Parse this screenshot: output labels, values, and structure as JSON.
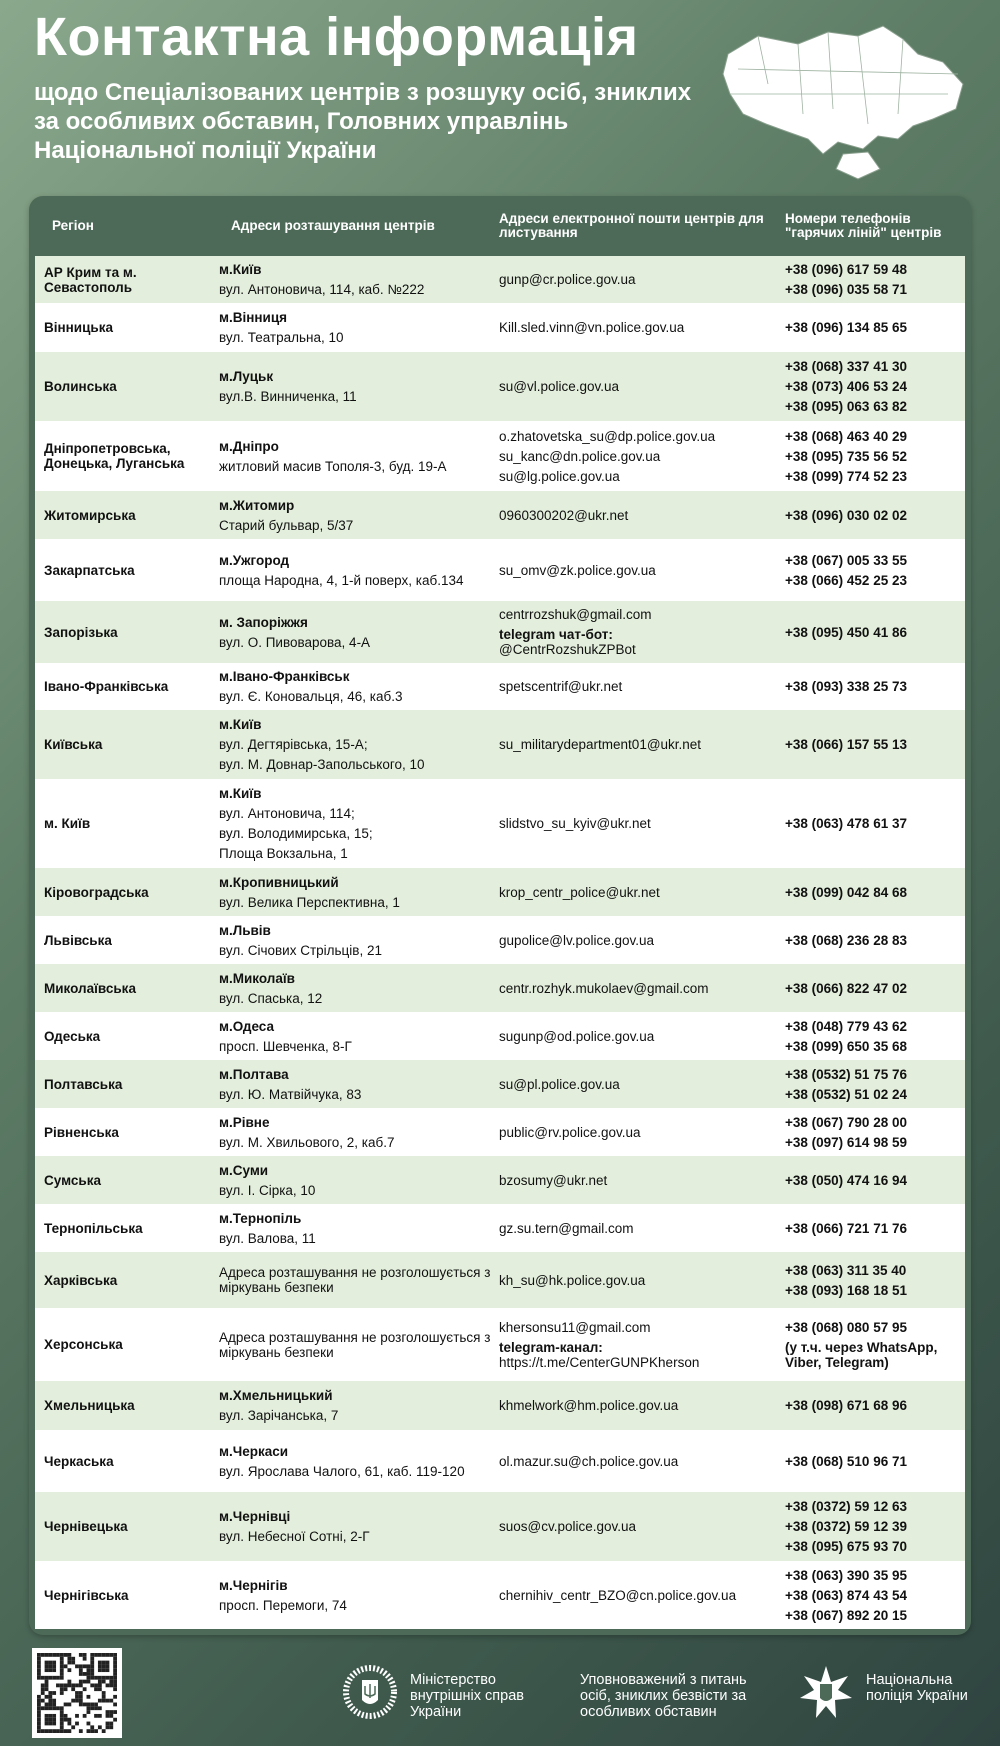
{
  "header": {
    "title": "Контактна інформація",
    "subtitle": "щодо Спеціалізованих центрів з розшуку осіб, зниклих за особливих обставин, Головних управлінь Національної поліції України"
  },
  "table": {
    "columns": [
      "Регіон",
      "Адреси розташування центрів",
      "Адреси електронної пошти центрів для листування",
      "Номери телефонів \"гарячих ліній\" центрів"
    ],
    "rows": [
      {
        "region": "АР Крим та м. Севастополь",
        "city": "м.Київ",
        "address": [
          "вул. Антоновича, 114, каб. №222"
        ],
        "emails": [
          "gunp@cr.police.gov.ua"
        ],
        "phones": [
          "+38 (096) 617 59 48",
          "+38 (096) 035 58 71"
        ]
      },
      {
        "region": "Вінницька",
        "city": "м.Вінниця",
        "address": [
          "вул. Театральна, 10"
        ],
        "emails": [
          "Kill.sled.vinn@vn.police.gov.ua"
        ],
        "phones": [
          "+38 (096) 134 85 65"
        ]
      },
      {
        "region": "Волинська",
        "city": "м.Луцьк",
        "address": [
          "вул.В. Винниченка, 11"
        ],
        "emails": [
          "su@vl.police.gov.ua"
        ],
        "phones": [
          "+38 (068) 337 41 30",
          "+38 (073) 406 53 24",
          "+38 (095) 063 63 82"
        ]
      },
      {
        "region": "Дніпропетровська, Донецька, Луганська",
        "city": "м.Дніпро",
        "address": [
          "житловий масив Тополя-3, буд. 19-А"
        ],
        "emails": [
          "o.zhatovetska_su@dp.police.gov.ua",
          "su_kanc@dn.police.gov.ua",
          "su@lg.police.gov.ua"
        ],
        "phones": [
          "+38 (068) 463 40 29",
          "+38 (095) 735 56 52",
          "+38 (099) 774 52 23"
        ]
      },
      {
        "region": "Житомирська",
        "city": "м.Житомир",
        "address": [
          "Старий бульвар, 5/37"
        ],
        "emails": [
          "0960300202@ukr.net"
        ],
        "phones": [
          "+38 (096) 030 02 02"
        ]
      },
      {
        "region": "Закарпатська",
        "city": "м.Ужгород",
        "address": [
          "площа Народна, 4, 1-й поверх, каб.134"
        ],
        "emails": [
          "su_omv@zk.police.gov.ua"
        ],
        "phones": [
          "+38 (067) 005 33 55",
          "+38 (066) 452 25 23"
        ]
      },
      {
        "region": "Запорізька",
        "city": "м. Запоріжжя",
        "address": [
          "вул. О. Пивоварова, 4-А"
        ],
        "emails": [
          "centrrozshuk@gmail.com"
        ],
        "extra_label": "telegram чат-бот:",
        "extra_value": "@CentrRozshukZPBot",
        "phones": [
          "+38 (095) 450 41 86"
        ]
      },
      {
        "region": "Івано-Франківська",
        "city": "м.Івано-Франківськ",
        "address": [
          "вул. Є. Коновальця, 46, каб.3"
        ],
        "emails": [
          "spetscentrif@ukr.net"
        ],
        "phones": [
          "+38 (093) 338 25 73"
        ]
      },
      {
        "region": "Київська",
        "city": "м.Київ",
        "address": [
          "вул. Дегтярівська, 15-А;",
          "вул. М. Довнар-Запольського, 10"
        ],
        "emails": [
          "su_militarydepartment01@ukr.net"
        ],
        "phones": [
          "+38 (066) 157 55 13"
        ]
      },
      {
        "region": "м. Київ",
        "city": "м.Київ",
        "address": [
          "вул. Антоновича, 114;",
          "вул. Володимирська, 15;",
          "Площа Вокзальна, 1"
        ],
        "emails": [
          "slidstvo_su_kyiv@ukr.net"
        ],
        "phones": [
          "+38 (063) 478 61 37"
        ]
      },
      {
        "region": "Кіровоградська",
        "city": "м.Кропивницький",
        "address": [
          "вул. Велика Перспективна, 1"
        ],
        "emails": [
          "krop_centr_police@ukr.net"
        ],
        "phones": [
          "+38 (099) 042 84 68"
        ]
      },
      {
        "region": "Львівська",
        "city": "м.Львів",
        "address": [
          "вул. Січових Стрільців, 21"
        ],
        "emails": [
          "gupolice@lv.police.gov.ua"
        ],
        "phones": [
          "+38 (068) 236 28 83"
        ]
      },
      {
        "region": "Миколаївська",
        "city": "м.Миколаїв",
        "address": [
          "вул. Спаська, 12"
        ],
        "emails": [
          "centr.rozhyk.mukolaev@gmail.com"
        ],
        "phones": [
          "+38 (066) 822 47 02"
        ]
      },
      {
        "region": "Одеська",
        "city": "м.Одеса",
        "address": [
          "просп. Шевченка, 8-Г"
        ],
        "emails": [
          "sugunp@od.police.gov.ua"
        ],
        "phones": [
          "+38 (048) 779 43 62",
          "+38 (099) 650 35 68"
        ]
      },
      {
        "region": "Полтавська",
        "city": "м.Полтава",
        "address": [
          "вул. Ю. Матвійчука, 83"
        ],
        "emails": [
          "su@pl.police.gov.ua"
        ],
        "phones": [
          "+38 (0532) 51 75 76",
          "+38 (0532) 51 02 24"
        ]
      },
      {
        "region": "Рівненська",
        "city": "м.Рівне",
        "address": [
          "вул. М. Хвильового, 2, каб.7"
        ],
        "emails": [
          "public@rv.police.gov.ua"
        ],
        "phones": [
          "+38 (067) 790 28 00",
          "+38 (097) 614 98 59"
        ]
      },
      {
        "region": "Сумська",
        "city": "м.Суми",
        "address": [
          "вул. І. Сірка, 10"
        ],
        "emails": [
          "bzosumy@ukr.net"
        ],
        "phones": [
          "+38 (050) 474 16 94"
        ]
      },
      {
        "region": "Тернопільська",
        "city": "м.Тернопіль",
        "address": [
          "вул. Валова, 11"
        ],
        "emails": [
          "gz.su.tern@gmail.com"
        ],
        "phones": [
          "+38 (066) 721 71 76"
        ]
      },
      {
        "region": "Харківська",
        "city": "",
        "address": [
          "Адреса розташування не розголошується з міркувань безпеки"
        ],
        "emails": [
          "kh_su@hk.police.gov.ua"
        ],
        "phones": [
          "+38 (063) 311 35 40",
          "+38 (093) 168 18 51"
        ]
      },
      {
        "region": "Херсонська",
        "city": "",
        "address": [
          "Адреса розташування не розголошується з міркувань безпеки"
        ],
        "emails": [
          "khersonsu11@gmail.com"
        ],
        "extra_label": "telegram-канал:",
        "extra_value": "https://t.me/CenterGUNPKherson",
        "phones": [
          "+38 (068) 080 57 95",
          "(у т.ч. через WhatsApp, Viber, Telegram)"
        ]
      },
      {
        "region": "Хмельницька",
        "city": "м.Хмельницький",
        "address": [
          "вул. Зарічанська, 7"
        ],
        "emails": [
          "khmelwork@hm.police.gov.ua"
        ],
        "phones": [
          "+38 (098) 671 68 96"
        ]
      },
      {
        "region": "Черкаська",
        "city": "м.Черкаси",
        "address": [
          "вул. Ярослава Чалого, 61, каб. 119-120"
        ],
        "emails": [
          "ol.mazur.su@ch.police.gov.ua"
        ],
        "phones": [
          "+38 (068) 510 96 71"
        ]
      },
      {
        "region": "Чернівецька",
        "city": "м.Чернівці",
        "address": [
          "вул. Небесної Сотні, 2-Г"
        ],
        "emails": [
          "suos@cv.police.gov.ua"
        ],
        "phones": [
          "+38 (0372) 59 12 63",
          "+38 (0372) 59 12 39",
          "+38 (095) 675 93 70"
        ]
      },
      {
        "region": "Чернігівська",
        "city": "м.Чернігів",
        "address": [
          "просп. Перемоги, 74"
        ],
        "emails": [
          "chernihiv_centr_BZO@cn.police.gov.ua"
        ],
        "phones": [
          "+38 (063) 390 35 95",
          "+38 (063) 874 43 54",
          "+38 (067) 892 20 15"
        ]
      }
    ]
  },
  "footer": {
    "mvs": "Міністерство внутрішніх справ України",
    "ombudsman": "Уповноважений з питань осіб, зниклих безвісти за особливих обставин",
    "police": "Національна поліція України",
    "icons": [
      "qr-code",
      "mvs-emblem",
      "police-emblem",
      "ukraine-map"
    ]
  }
}
